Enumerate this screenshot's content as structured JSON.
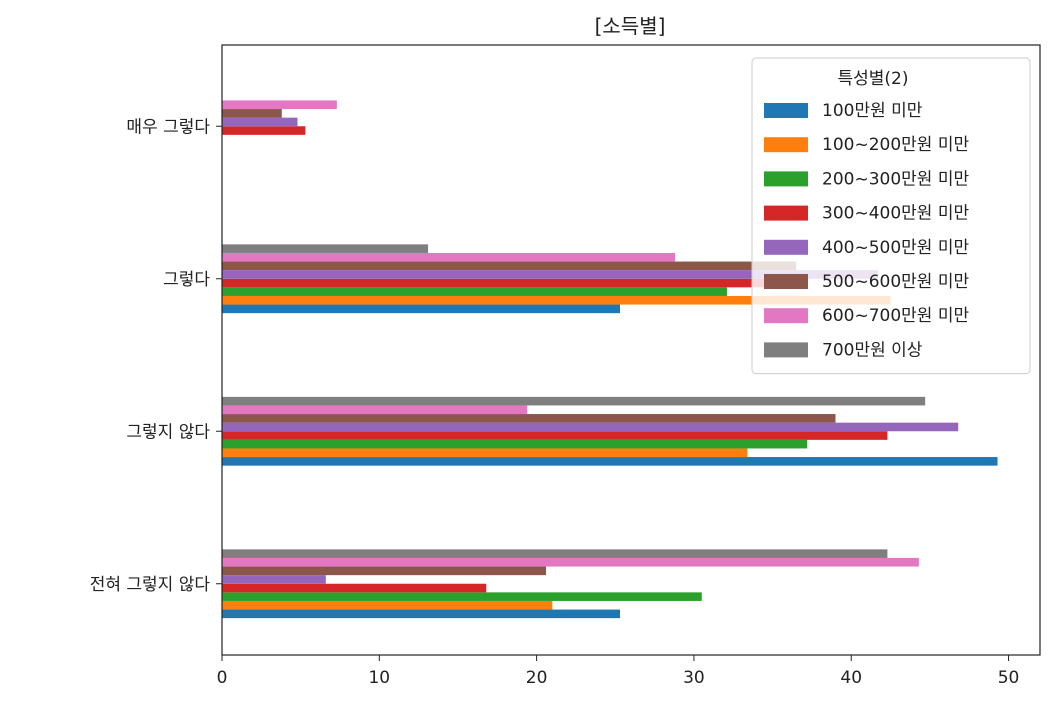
{
  "chart_data": {
    "type": "bar",
    "orientation": "horizontal",
    "title": "[소득별]",
    "xlabel": "",
    "ylabel": "",
    "xlim": [
      0,
      52
    ],
    "xticks": [
      0,
      10,
      20,
      30,
      40,
      50
    ],
    "categories": [
      "매우 그렇다",
      "그렇다",
      "그렇지 않다",
      "전혀 그렇지 않다"
    ],
    "legend": {
      "title": "특성별(2)",
      "placement": "upper right"
    },
    "series": [
      {
        "name": "100만원 미만",
        "color": "#1f77b4",
        "values": [
          0,
          25.3,
          49.3,
          25.3
        ]
      },
      {
        "name": "100~200만원 미만",
        "color": "#ff7f0e",
        "values": [
          0,
          42.5,
          33.4,
          21.0
        ]
      },
      {
        "name": "200~300만원 미만",
        "color": "#2ca02c",
        "values": [
          0,
          32.1,
          37.2,
          30.5
        ]
      },
      {
        "name": "300~400만원 미만",
        "color": "#d62728",
        "values": [
          5.3,
          35.0,
          42.3,
          16.8
        ]
      },
      {
        "name": "400~500만원 미만",
        "color": "#9467bd",
        "values": [
          4.8,
          41.7,
          46.8,
          6.6
        ]
      },
      {
        "name": "500~600만원 미만",
        "color": "#8c564b",
        "values": [
          3.8,
          36.5,
          39.0,
          20.6
        ]
      },
      {
        "name": "600~700만원 미만",
        "color": "#e377c2",
        "values": [
          7.3,
          28.8,
          19.4,
          44.3
        ]
      },
      {
        "name": "700만원 이상",
        "color": "#7f7f7f",
        "values": [
          0,
          13.1,
          44.7,
          42.3
        ]
      }
    ]
  }
}
